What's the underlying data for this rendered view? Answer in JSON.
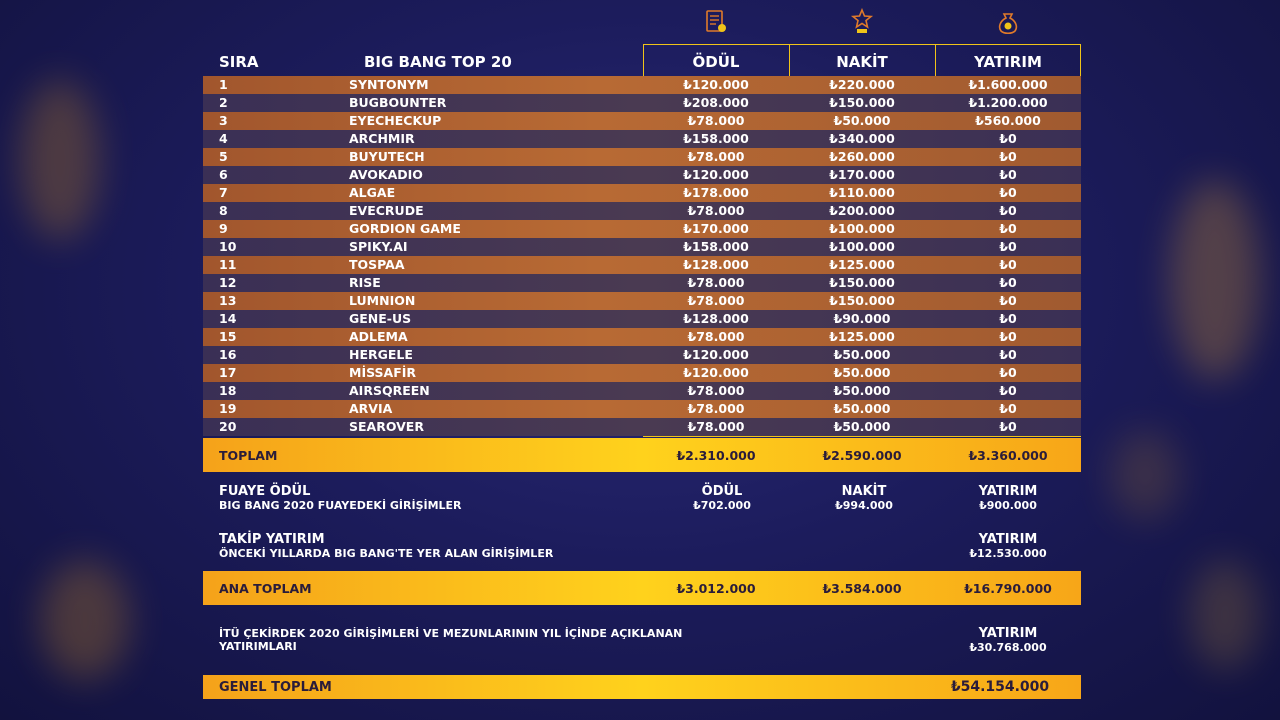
{
  "header": {
    "sira": "SIRA",
    "title": "BIG BANG TOP 20",
    "col_odul": "ÖDÜL",
    "col_nakit": "NAKİT",
    "col_yatirim": "YATIRIM"
  },
  "icons": [
    "certificate-icon",
    "trophy-icon",
    "money-bag-icon"
  ],
  "accent_color": "#f0c419",
  "rows": [
    {
      "rank": "1",
      "name": "SYNTONYM",
      "odul": "₺120.000",
      "nakit": "₺220.000",
      "yatirim": "₺1.600.000"
    },
    {
      "rank": "2",
      "name": "BUGBOUNTER",
      "odul": "₺208.000",
      "nakit": "₺150.000",
      "yatirim": "₺1.200.000"
    },
    {
      "rank": "3",
      "name": "EYECHECKUP",
      "odul": "₺78.000",
      "nakit": "₺50.000",
      "yatirim": "₺560.000"
    },
    {
      "rank": "4",
      "name": "ARCHMIR",
      "odul": "₺158.000",
      "nakit": "₺340.000",
      "yatirim": "₺0"
    },
    {
      "rank": "5",
      "name": "BUYUTECH",
      "odul": "₺78.000",
      "nakit": "₺260.000",
      "yatirim": "₺0"
    },
    {
      "rank": "6",
      "name": "AVOKADIO",
      "odul": "₺120.000",
      "nakit": "₺170.000",
      "yatirim": "₺0"
    },
    {
      "rank": "7",
      "name": "ALGAE",
      "odul": "₺178.000",
      "nakit": "₺110.000",
      "yatirim": "₺0"
    },
    {
      "rank": "8",
      "name": "EVECRUDE",
      "odul": "₺78.000",
      "nakit": "₺200.000",
      "yatirim": "₺0"
    },
    {
      "rank": "9",
      "name": "GORDION GAME",
      "odul": "₺170.000",
      "nakit": "₺100.000",
      "yatirim": "₺0"
    },
    {
      "rank": "10",
      "name": "SPIKY.AI",
      "odul": "₺158.000",
      "nakit": "₺100.000",
      "yatirim": "₺0"
    },
    {
      "rank": "11",
      "name": "TOSPAA",
      "odul": "₺128.000",
      "nakit": "₺125.000",
      "yatirim": "₺0"
    },
    {
      "rank": "12",
      "name": "RISE",
      "odul": "₺78.000",
      "nakit": "₺150.000",
      "yatirim": "₺0"
    },
    {
      "rank": "13",
      "name": "LUMNION",
      "odul": "₺78.000",
      "nakit": "₺150.000",
      "yatirim": "₺0"
    },
    {
      "rank": "14",
      "name": "GENE-US",
      "odul": "₺128.000",
      "nakit": "₺90.000",
      "yatirim": "₺0"
    },
    {
      "rank": "15",
      "name": "ADLEMA",
      "odul": "₺78.000",
      "nakit": "₺125.000",
      "yatirim": "₺0"
    },
    {
      "rank": "16",
      "name": "HERGELE",
      "odul": "₺120.000",
      "nakit": "₺50.000",
      "yatirim": "₺0"
    },
    {
      "rank": "17",
      "name": "MİSSAFİR",
      "odul": "₺120.000",
      "nakit": "₺50.000",
      "yatirim": "₺0"
    },
    {
      "rank": "18",
      "name": "AIRSQREEN",
      "odul": "₺78.000",
      "nakit": "₺50.000",
      "yatirim": "₺0"
    },
    {
      "rank": "19",
      "name": "ARVIA",
      "odul": "₺78.000",
      "nakit": "₺50.000",
      "yatirim": "₺0"
    },
    {
      "rank": "20",
      "name": "SEAROVER",
      "odul": "₺78.000",
      "nakit": "₺50.000",
      "yatirim": "₺0"
    }
  ],
  "toplam": {
    "label": "TOPLAM",
    "odul": "₺2.310.000",
    "nakit": "₺2.590.000",
    "yatirim": "₺3.360.000"
  },
  "fuaye": {
    "title": "FUAYE ÖDÜL",
    "subtitle": "BIG BANG 2020 FUAYEDEKİ GİRİŞİMLER",
    "odul_label": "ÖDÜL",
    "odul": "₺702.000",
    "nakit_label": "NAKİT",
    "nakit": "₺994.000",
    "yatirim_label": "YATIRIM",
    "yatirim": "₺900.000"
  },
  "takip": {
    "title": "TAKİP YATIRIM",
    "subtitle": "ÖNCEKİ YILLARDA BIG BANG'TE YER ALAN GİRİŞİMLER",
    "yatirim_label": "YATIRIM",
    "yatirim": "₺12.530.000"
  },
  "ana_toplam": {
    "label": "ANA TOPLAM",
    "odul": "₺3.012.000",
    "nakit": "₺3.584.000",
    "yatirim": "₺16.790.000"
  },
  "itu": {
    "line1": "İTÜ ÇEKİRDEK 2020 GİRİŞİMLERİ VE MEZUNLARININ YIL İÇİNDE AÇIKLANAN",
    "line2": "YATIRIMLARI",
    "yatirim_label": "YATIRIM",
    "yatirim": "₺30.768.000"
  },
  "genel_toplam": {
    "label": "GENEL TOPLAM",
    "value": "₺54.154.000"
  }
}
